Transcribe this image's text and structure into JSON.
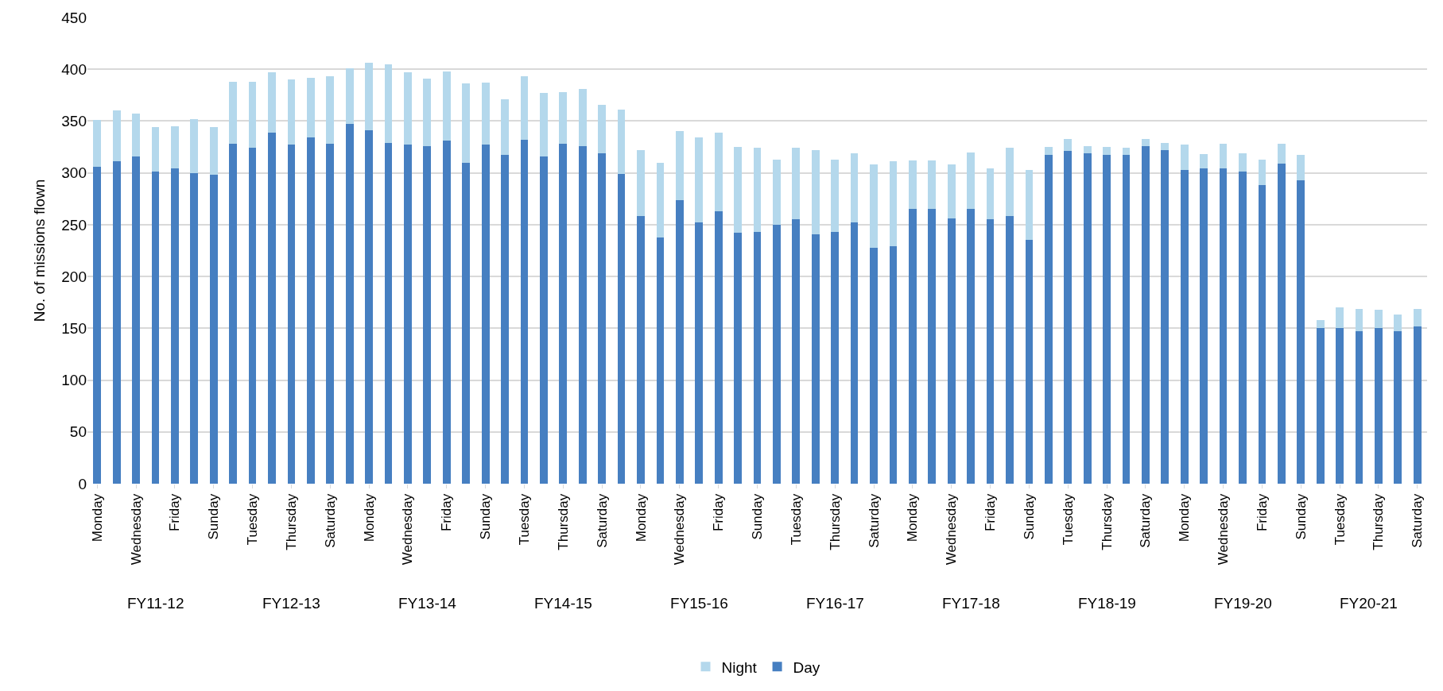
{
  "chart_data": {
    "type": "bar",
    "stacked": true,
    "ylabel": "No. of missions flown",
    "categories": [
      "Monday",
      null,
      "Wednesday",
      null,
      "Friday",
      null,
      "Sunday",
      null,
      "Tuesday",
      null,
      "Thursday",
      null,
      "Saturday",
      null,
      "Monday",
      null,
      "Wednesday",
      null,
      "Friday",
      null,
      "Sunday",
      null,
      "Tuesday",
      null,
      "Thursday",
      null,
      "Saturday",
      null,
      "Monday",
      null,
      "Wednesday",
      null,
      "Friday",
      null,
      "Sunday",
      null,
      "Tuesday",
      null,
      "Thursday",
      null,
      "Saturday",
      null,
      "Monday",
      null,
      "Wednesday",
      null,
      "Friday",
      null,
      "Sunday",
      null,
      "Tuesday",
      null,
      "Thursday",
      null,
      "Saturday",
      null,
      "Monday",
      null,
      "Wednesday",
      null,
      "Friday",
      null,
      "Sunday",
      null,
      "Tuesday",
      null,
      "Thursday",
      null,
      "Saturday"
    ],
    "series": [
      {
        "name": "Day",
        "color": "#467fc1",
        "values": [
          306,
          311,
          316,
          301,
          304,
          300,
          298,
          328,
          324,
          339,
          327,
          334,
          328,
          347,
          341,
          329,
          327,
          326,
          331,
          310,
          327,
          317,
          332,
          316,
          328,
          326,
          319,
          299,
          258,
          238,
          274,
          252,
          263,
          242,
          243,
          250,
          255,
          241,
          243,
          252,
          228,
          229,
          265,
          265,
          256,
          265,
          255,
          258,
          235,
          317,
          321,
          319,
          317,
          317,
          326,
          322,
          303,
          304,
          304,
          301,
          288,
          309,
          293,
          150,
          150,
          147,
          150,
          147,
          152
        ]
      },
      {
        "name": "Night",
        "color": "#b4d8ec",
        "values": [
          45,
          49,
          41,
          43,
          41,
          52,
          46,
          60,
          64,
          58,
          63,
          58,
          65,
          54,
          65,
          76,
          70,
          65,
          67,
          76,
          60,
          54,
          61,
          61,
          50,
          55,
          47,
          62,
          64,
          72,
          66,
          82,
          76,
          83,
          81,
          63,
          69,
          81,
          70,
          67,
          80,
          82,
          47,
          47,
          52,
          55,
          49,
          66,
          68,
          8,
          12,
          7,
          8,
          7,
          7,
          7,
          24,
          14,
          24,
          18,
          25,
          19,
          24,
          8,
          20,
          22,
          18,
          16,
          17
        ]
      }
    ],
    "annotations": [
      "FY11-12",
      "FY12-13",
      "FY13-14",
      "FY14-15",
      "FY15-16",
      "FY16-17",
      "FY17-18",
      "FY18-19",
      "FY19-20",
      "FY20-21"
    ],
    "ylim": [
      0,
      450
    ],
    "yticks": [
      0,
      50,
      100,
      150,
      200,
      250,
      300,
      350,
      400,
      450
    ],
    "grid": "y",
    "legend": "bottom"
  }
}
